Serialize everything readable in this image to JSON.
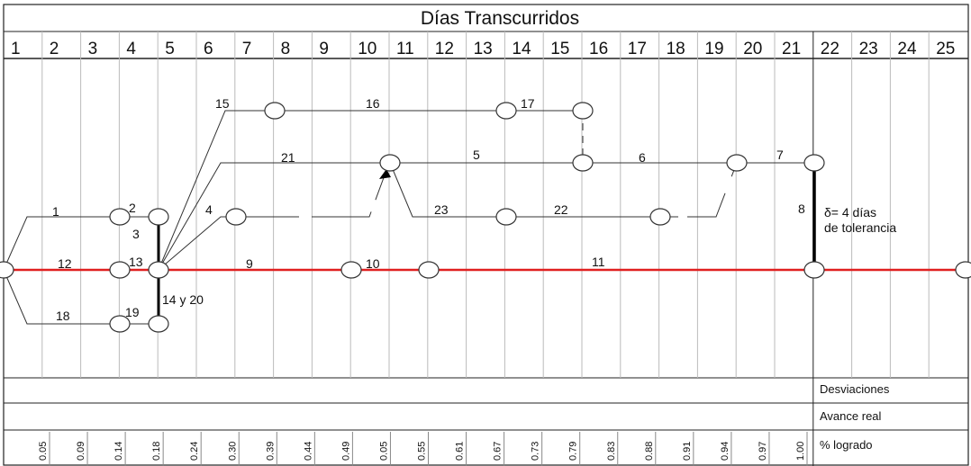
{
  "header": {
    "title": "Días Transcurridos"
  },
  "days": [
    "1",
    "2",
    "3",
    "4",
    "5",
    "6",
    "7",
    "8",
    "9",
    "10",
    "11",
    "12",
    "13",
    "14",
    "15",
    "16",
    "17",
    "18",
    "19",
    "20",
    "21",
    "22",
    "23",
    "24",
    "25"
  ],
  "activities": [
    "1",
    "2",
    "3",
    "4",
    "5",
    "6",
    "7",
    "8",
    "9",
    "10",
    "11",
    "12",
    "13",
    "14 y 20",
    "15",
    "16",
    "17",
    "18",
    "19",
    "21",
    "22",
    "23"
  ],
  "annotation": [
    "δ= 4 días",
    "de tolerancia"
  ],
  "rows": [
    "Desviaciones",
    "Avance real",
    "% logrado"
  ],
  "percent_logrado": [
    "0.05",
    "0.09",
    "0.14",
    "0.18",
    "0.24",
    "0.30",
    "0.39",
    "0.44",
    "0.49",
    "0.05",
    "0.55",
    "0.61",
    "0.67",
    "0.73",
    "0.79",
    "0.83",
    "0.88",
    "0.91",
    "0.94",
    "0.97",
    "1.00"
  ]
}
